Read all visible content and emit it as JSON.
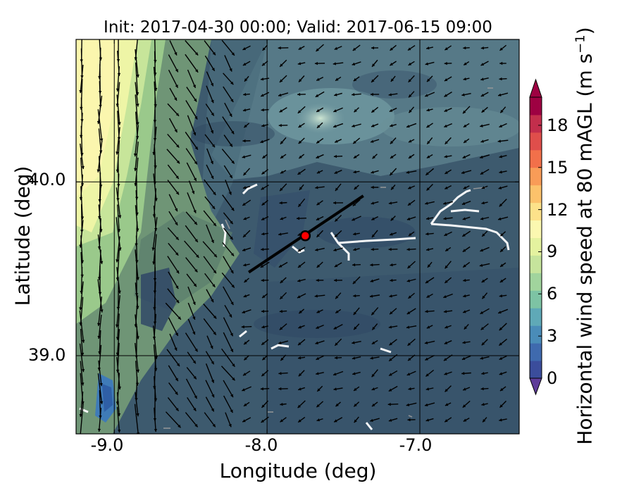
{
  "chart_data": {
    "type": "heatmap",
    "title": "Init: 2017-04-30 00:00; Valid: 2017-06-15 09:00",
    "xlabel": "Longitude (deg)",
    "ylabel": "Latitude (deg)",
    "xlim": [
      -9.25,
      -6.35
    ],
    "ylim": [
      38.55,
      40.82
    ],
    "xticks": [
      -9.0,
      -8.0,
      -7.0
    ],
    "xtick_labels": [
      "-9.0",
      "-8.0",
      "-7.0"
    ],
    "yticks": [
      39.0,
      40.0
    ],
    "ytick_labels": [
      "39.0",
      "40.0"
    ],
    "grid": true,
    "colorbar": {
      "label": "Horizontal wind speed at 80 mAGL (m s$^{-1}$)",
      "label_text": "Horizontal wind speed at 80 mAGL (m s",
      "label_exp": "−1",
      "label_end": ")",
      "range": [
        0,
        20
      ],
      "extend": "both",
      "ticks": [
        0,
        3,
        6,
        9,
        12,
        15,
        18
      ],
      "tick_labels": [
        "0",
        "3",
        "6",
        "9",
        "12",
        "15",
        "18"
      ],
      "colormap": "Spectral_r"
    },
    "cross_section_line": {
      "start": [
        -8.12,
        39.48
      ],
      "end": [
        -7.37,
        39.92
      ],
      "color": "#000000"
    },
    "point": {
      "lon": -7.75,
      "lat": 39.69,
      "color": "#ff0000"
    },
    "vectors": "horizontal wind barbs (quiver)"
  }
}
